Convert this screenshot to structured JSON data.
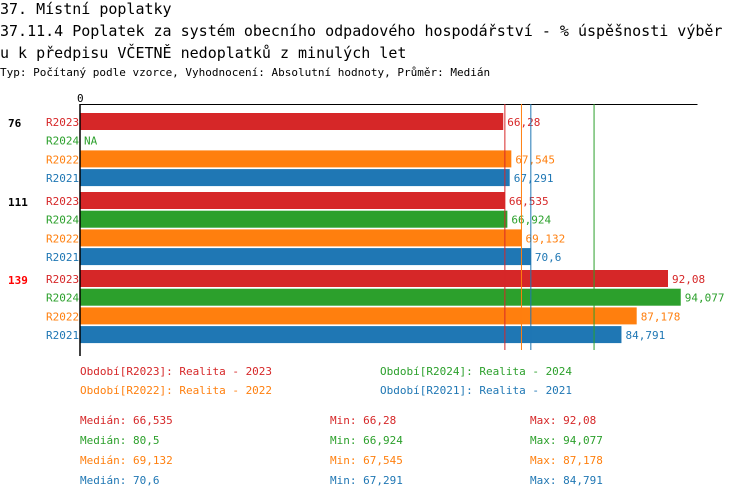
{
  "header": {
    "title1": "37. Místní poplatky",
    "title2": "37.11.4 Poplatek za systém obecního odpadového hospodářství  - % úspěšnosti výběr",
    "title3": "u k předpisu VČETNĚ nedoplatků z minulých let",
    "subtitle": "Typ: Počítaný podle vzorce, Vyhodnocení: Absolutní hodnoty, Průměr: Medián"
  },
  "colors": {
    "R2023": "#d62728",
    "R2024": "#2ca02c",
    "R2022": "#ff7f0e",
    "R2021": "#1f77b4",
    "highlight": "#ff0000"
  },
  "chart_data": {
    "type": "bar",
    "orientation": "horizontal",
    "xlim": [
      0,
      96.7
    ],
    "x_tick": "0",
    "groups": [
      {
        "label": "76",
        "highlight": false,
        "bars": [
          {
            "series": "R2023",
            "value": 66.28,
            "label": "66,28"
          },
          {
            "series": "R2024",
            "value": null,
            "label": "NA"
          },
          {
            "series": "R2022",
            "value": 67.545,
            "label": "67,545"
          },
          {
            "series": "R2021",
            "value": 67.291,
            "label": "67,291"
          }
        ]
      },
      {
        "label": "111",
        "highlight": false,
        "bars": [
          {
            "series": "R2023",
            "value": 66.535,
            "label": "66,535"
          },
          {
            "series": "R2024",
            "value": 66.924,
            "label": "66,924"
          },
          {
            "series": "R2022",
            "value": 69.132,
            "label": "69,132"
          },
          {
            "series": "R2021",
            "value": 70.6,
            "label": "70,6"
          }
        ]
      },
      {
        "label": "139",
        "highlight": true,
        "bars": [
          {
            "series": "R2023",
            "value": 92.08,
            "label": "92,08"
          },
          {
            "series": "R2024",
            "value": 94.077,
            "label": "94,077"
          },
          {
            "series": "R2022",
            "value": 87.178,
            "label": "87,178"
          },
          {
            "series": "R2021",
            "value": 84.791,
            "label": "84,791"
          }
        ]
      }
    ],
    "medians": [
      {
        "series": "R2023",
        "value": 66.535
      },
      {
        "series": "R2022",
        "value": 69.132
      },
      {
        "series": "R2021",
        "value": 70.6
      },
      {
        "series": "R2024",
        "value": 80.5
      }
    ]
  },
  "legend": [
    {
      "series": "R2023",
      "text": "Období[R2023]: Realita - 2023"
    },
    {
      "series": "R2024",
      "text": "Období[R2024]: Realita - 2024"
    },
    {
      "series": "R2022",
      "text": "Období[R2022]: Realita - 2022"
    },
    {
      "series": "R2021",
      "text": "Období[R2021]: Realita - 2021"
    }
  ],
  "stats": [
    {
      "series": "R2023",
      "median": "Medián: 66,535",
      "min": "Min: 66,28",
      "max": "Max: 92,08"
    },
    {
      "series": "R2024",
      "median": "Medián: 80,5",
      "min": "Min: 66,924",
      "max": "Max: 94,077"
    },
    {
      "series": "R2022",
      "median": "Medián: 69,132",
      "min": "Min: 67,545",
      "max": "Max: 87,178"
    },
    {
      "series": "R2021",
      "median": "Medián: 70,6",
      "min": "Min: 67,291",
      "max": "Max: 84,791"
    }
  ]
}
